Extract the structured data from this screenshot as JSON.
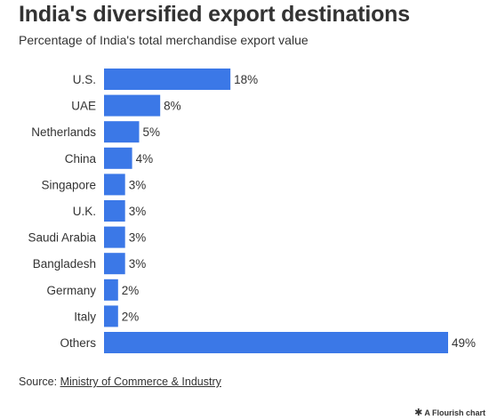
{
  "title": "India's diversified export destinations",
  "subtitle": "Percentage of India's total merchandise export value",
  "source": {
    "prefix": "Source: ",
    "link_text": "Ministry of Commerce & Industry"
  },
  "credit": "A Flourish chart",
  "colors": {
    "bar": "#3b78e7",
    "text": "#333333"
  },
  "chart_data": {
    "type": "bar",
    "orientation": "horizontal",
    "categories": [
      "U.S.",
      "UAE",
      "Netherlands",
      "China",
      "Singapore",
      "U.K.",
      "Saudi Arabia",
      "Bangladesh",
      "Germany",
      "Italy",
      "Others"
    ],
    "values": [
      18,
      8,
      5,
      4,
      3,
      3,
      3,
      3,
      2,
      2,
      49
    ],
    "data_labels": [
      "18%",
      "8%",
      "5%",
      "4%",
      "3%",
      "3%",
      "3%",
      "3%",
      "2%",
      "2%",
      "49%"
    ],
    "xlim": [
      0,
      49
    ],
    "title": "India's diversified export destinations",
    "subtitle": "Percentage of India's total merchandise export value",
    "xlabel": "",
    "ylabel": "",
    "grid": false,
    "legend": "none"
  }
}
